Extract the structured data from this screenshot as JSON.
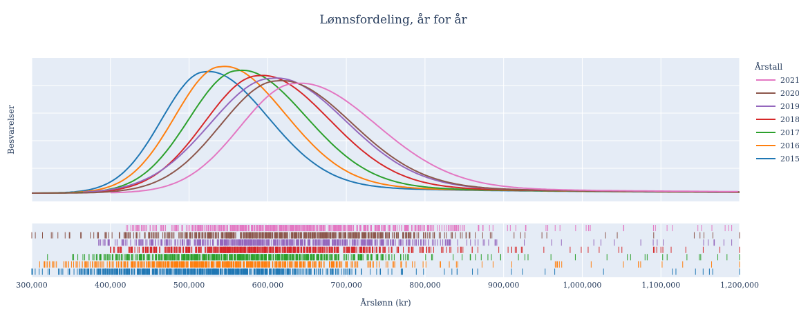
{
  "chart_data": {
    "type": "line",
    "title": "Lønnsfordeling, år for år",
    "xlabel": "Årslønn (kr)",
    "ylabel": "Besvarelser",
    "xlim": [
      300000,
      1200000
    ],
    "x_ticks": [
      300000,
      400000,
      500000,
      600000,
      700000,
      800000,
      900000,
      1000000,
      1100000,
      1200000
    ],
    "x_tick_labels": [
      "300,000",
      "400,000",
      "500,000",
      "600,000",
      "700,000",
      "800,000",
      "900,000",
      "1,000,000",
      "1,100,000",
      "1,200,000"
    ],
    "y_ticks_shown": false,
    "grid": true,
    "legend": {
      "title": "Årstall",
      "placement": "right",
      "order": [
        "2021",
        "2020",
        "2019",
        "2018",
        "2017",
        "2016",
        "2015"
      ]
    },
    "rug_plot": true,
    "series": [
      {
        "name": "2015",
        "color": "#1f77b4",
        "peak": 520000,
        "sd_left": 55000,
        "sd_right": 78000,
        "height": 0.94,
        "tail_scale": 260000,
        "rug_min": 300000,
        "rug_max": 1200000
      },
      {
        "name": "2016",
        "color": "#ff7f0e",
        "peak": 540000,
        "sd_left": 58000,
        "sd_right": 80000,
        "height": 0.98,
        "tail_scale": 260000,
        "rug_min": 310000,
        "rug_max": 1200000
      },
      {
        "name": "2017",
        "color": "#2ca02c",
        "peak": 562000,
        "sd_left": 62000,
        "sd_right": 84000,
        "height": 0.95,
        "tail_scale": 260000,
        "rug_min": 320000,
        "rug_max": 1200000
      },
      {
        "name": "2018",
        "color": "#d62728",
        "peak": 588000,
        "sd_left": 68000,
        "sd_right": 88000,
        "height": 0.91,
        "tail_scale": 270000,
        "rug_min": 400000,
        "rug_max": 1200000
      },
      {
        "name": "2019",
        "color": "#9467bd",
        "peak": 605000,
        "sd_left": 78000,
        "sd_right": 92000,
        "height": 0.89,
        "tail_scale": 280000,
        "rug_min": 385000,
        "rug_max": 1190000
      },
      {
        "name": "2020",
        "color": "#8c564b",
        "peak": 612000,
        "sd_left": 72000,
        "sd_right": 92000,
        "height": 0.87,
        "tail_scale": 280000,
        "rug_min": 300000,
        "rug_max": 1200000
      },
      {
        "name": "2021",
        "color": "#e377c2",
        "peak": 635000,
        "sd_left": 70000,
        "sd_right": 100000,
        "height": 0.85,
        "tail_scale": 300000,
        "rug_min": 420000,
        "rug_max": 1190000
      }
    ]
  }
}
